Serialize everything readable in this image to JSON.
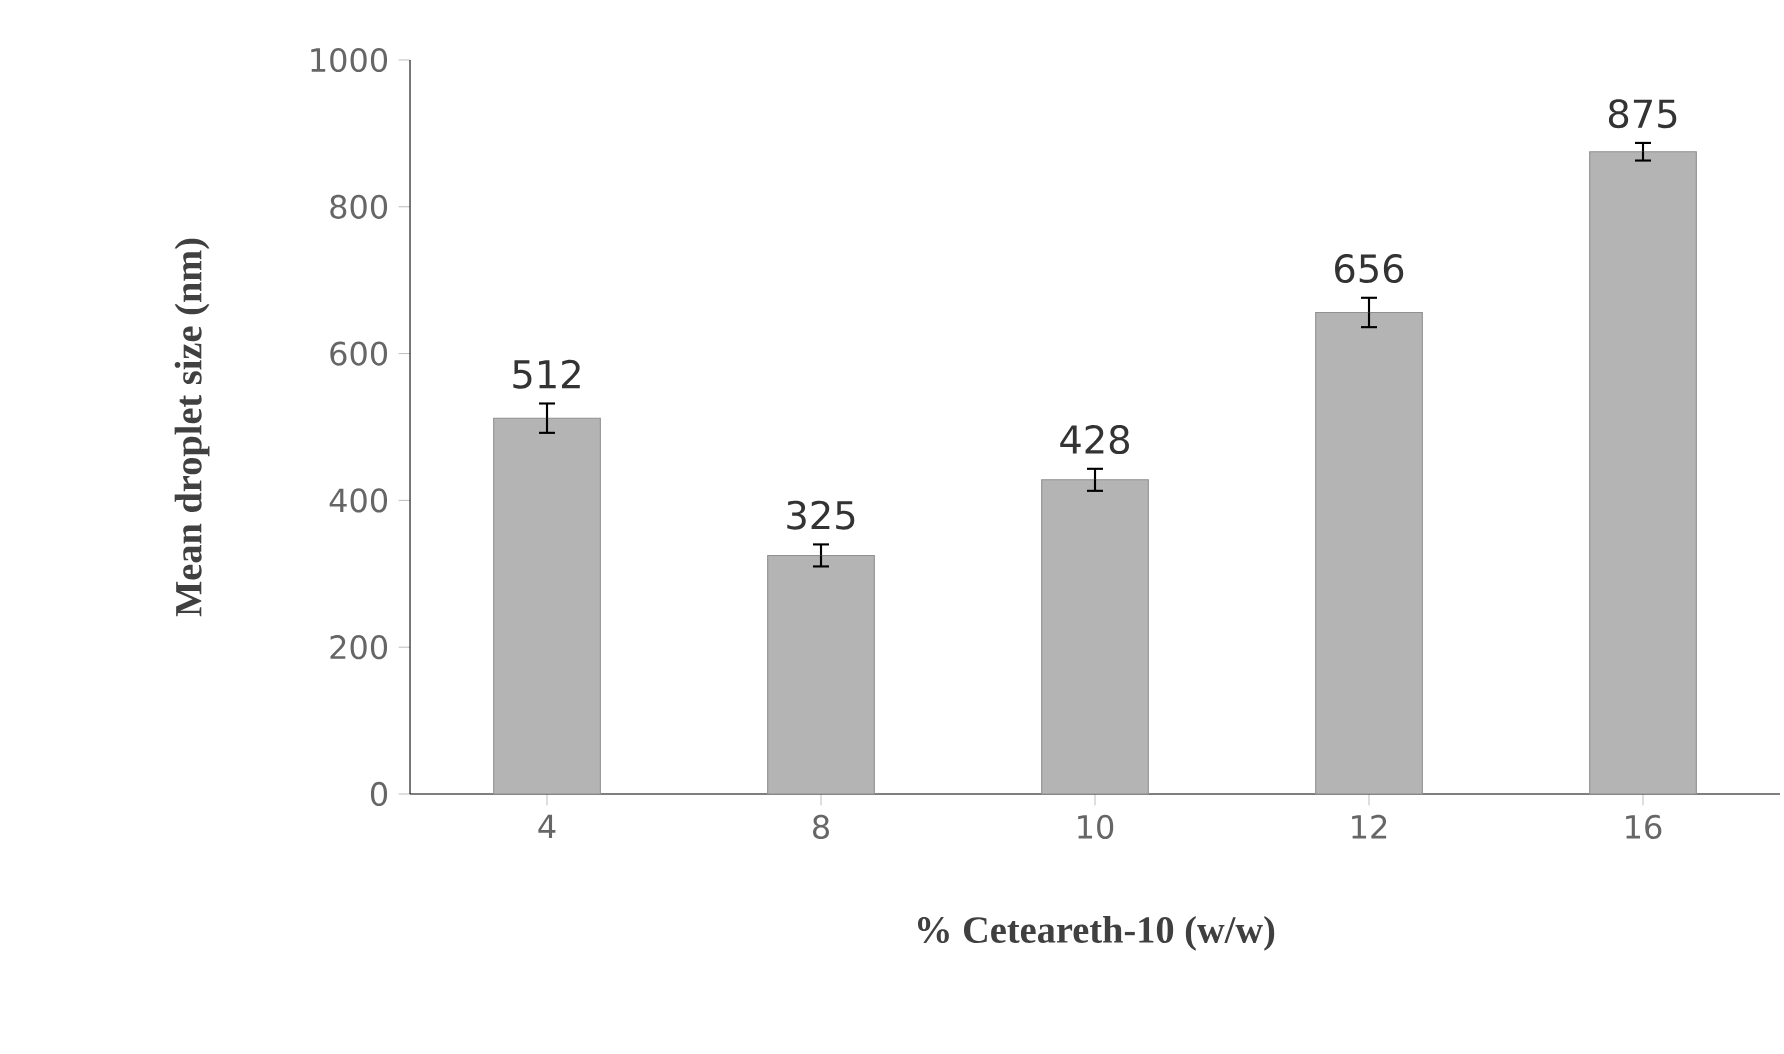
{
  "chart_data": {
    "type": "bar",
    "xlabel": "% Ceteareth-10 (w/w)",
    "ylabel": "Mean droplet size (nm)",
    "categories": [
      "4",
      "8",
      "10",
      "12",
      "16"
    ],
    "values": [
      512,
      325,
      428,
      656,
      875
    ],
    "errors": [
      20,
      15,
      15,
      20,
      12
    ],
    "color": "#b4b4b4",
    "ylim": [
      0,
      1000
    ],
    "yticks": [
      0,
      200,
      400,
      600,
      800,
      1000
    ],
    "data_labels": true,
    "grid": false
  }
}
